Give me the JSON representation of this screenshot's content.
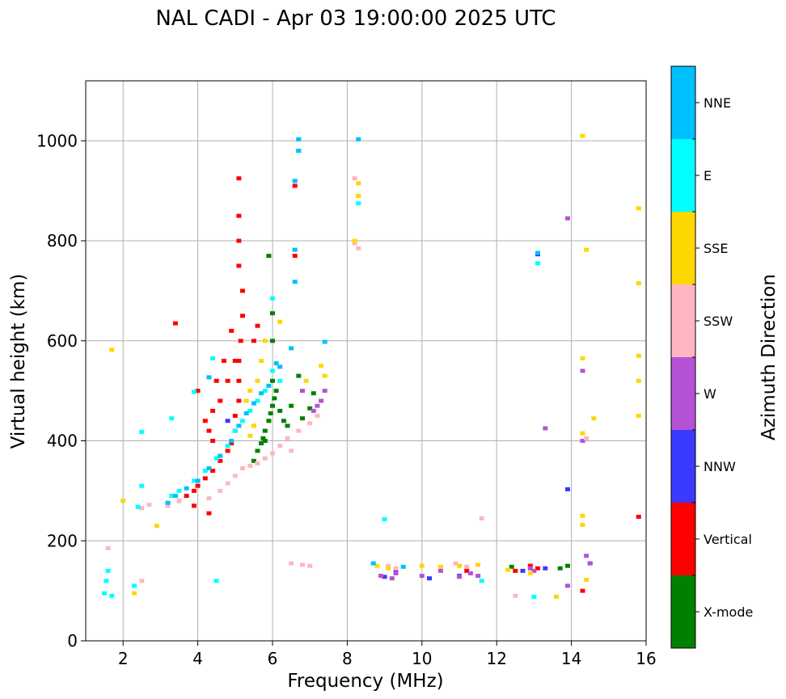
{
  "chart_data": {
    "type": "scatter",
    "title": "NAL CADI - Apr 03 19:00:00 2025 UTC",
    "xlabel": "Frequency (MHz)",
    "ylabel": "Virtual height (km)",
    "xlim": [
      1,
      16
    ],
    "ylim": [
      0,
      1120
    ],
    "xticks": [
      "2",
      "4",
      "6",
      "8",
      "10",
      "12",
      "14",
      "16"
    ],
    "yticks": [
      "0",
      "200",
      "400",
      "600",
      "800",
      "1000"
    ],
    "grid": true,
    "colorbar": {
      "label": "Azimuth Direction",
      "categories": [
        "X-mode",
        "Vertical",
        "NNW",
        "W",
        "SSW",
        "SSE",
        "E",
        "NNE"
      ],
      "colors": [
        "#008000",
        "#ff0000",
        "#3a3aff",
        "#b652d5",
        "#ffb6c1",
        "#ffd700",
        "#00ffff",
        "#00bfff"
      ]
    },
    "series": [
      {
        "name": "X-mode",
        "points": [
          [
            5.6,
            380
          ],
          [
            5.7,
            395
          ],
          [
            5.75,
            405
          ],
          [
            5.8,
            420
          ],
          [
            5.9,
            440
          ],
          [
            5.95,
            455
          ],
          [
            6.0,
            470
          ],
          [
            6.05,
            485
          ],
          [
            6.0,
            520
          ],
          [
            6.0,
            655
          ],
          [
            5.9,
            770
          ],
          [
            6.1,
            500
          ],
          [
            6.2,
            460
          ],
          [
            6.3,
            440
          ],
          [
            6.4,
            430
          ],
          [
            6.5,
            470
          ],
          [
            6.7,
            530
          ],
          [
            6.8,
            445
          ],
          [
            7.0,
            465
          ],
          [
            7.1,
            495
          ],
          [
            5.5,
            360
          ],
          [
            5.8,
            400
          ],
          [
            6.0,
            600
          ],
          [
            14.5,
            155
          ],
          [
            13.7,
            145
          ],
          [
            13.9,
            150
          ],
          [
            12.4,
            148
          ]
        ]
      },
      {
        "name": "Vertical",
        "points": [
          [
            3.5,
            280
          ],
          [
            3.7,
            290
          ],
          [
            3.9,
            300
          ],
          [
            4.0,
            310
          ],
          [
            4.2,
            325
          ],
          [
            4.4,
            340
          ],
          [
            4.6,
            360
          ],
          [
            4.8,
            380
          ],
          [
            4.9,
            395
          ],
          [
            5.0,
            420
          ],
          [
            5.0,
            450
          ],
          [
            5.1,
            480
          ],
          [
            5.1,
            520
          ],
          [
            5.1,
            560
          ],
          [
            5.15,
            600
          ],
          [
            5.2,
            650
          ],
          [
            5.2,
            700
          ],
          [
            5.1,
            750
          ],
          [
            5.1,
            800
          ],
          [
            5.1,
            850
          ],
          [
            5.1,
            925
          ],
          [
            4.9,
            620
          ],
          [
            4.7,
            560
          ],
          [
            4.5,
            520
          ],
          [
            4.2,
            440
          ],
          [
            4.3,
            420
          ],
          [
            3.4,
            635
          ],
          [
            4.0,
            500
          ],
          [
            4.4,
            460
          ],
          [
            4.8,
            520
          ],
          [
            5.0,
            560
          ],
          [
            5.5,
            600
          ],
          [
            5.6,
            630
          ],
          [
            6.6,
            910
          ],
          [
            6.6,
            770
          ],
          [
            12.9,
            150
          ],
          [
            12.5,
            140
          ],
          [
            13.1,
            145
          ],
          [
            15.8,
            248
          ],
          [
            14.3,
            100
          ],
          [
            11.2,
            140
          ],
          [
            4.6,
            480
          ],
          [
            4.4,
            400
          ],
          [
            3.9,
            270
          ],
          [
            4.3,
            255
          ]
        ]
      },
      {
        "name": "NNW",
        "points": [
          [
            13.9,
            303
          ],
          [
            13.3,
            145
          ],
          [
            12.7,
            140
          ],
          [
            11.0,
            130
          ],
          [
            10.2,
            125
          ],
          [
            9.3,
            140
          ],
          [
            9.0,
            128
          ],
          [
            4.8,
            440
          ],
          [
            13.1,
            773
          ]
        ]
      },
      {
        "name": "W",
        "points": [
          [
            8.9,
            130
          ],
          [
            9.2,
            125
          ],
          [
            9.3,
            135
          ],
          [
            10.0,
            130
          ],
          [
            10.5,
            140
          ],
          [
            11.0,
            128
          ],
          [
            11.3,
            135
          ],
          [
            11.5,
            130
          ],
          [
            12.9,
            145
          ],
          [
            13.0,
            140
          ],
          [
            13.9,
            845
          ],
          [
            14.3,
            540
          ],
          [
            14.3,
            400
          ],
          [
            13.9,
            110
          ],
          [
            13.3,
            425
          ],
          [
            7.4,
            500
          ],
          [
            7.3,
            480
          ],
          [
            7.2,
            470
          ],
          [
            7.1,
            460
          ],
          [
            14.5,
            155
          ],
          [
            14.4,
            170
          ],
          [
            6.8,
            500
          ]
        ]
      },
      {
        "name": "SSW",
        "points": [
          [
            4.3,
            285
          ],
          [
            4.6,
            300
          ],
          [
            4.8,
            315
          ],
          [
            5.0,
            330
          ],
          [
            5.2,
            345
          ],
          [
            5.4,
            350
          ],
          [
            5.6,
            355
          ],
          [
            5.8,
            365
          ],
          [
            6.0,
            375
          ],
          [
            6.2,
            390
          ],
          [
            6.4,
            405
          ],
          [
            6.5,
            380
          ],
          [
            6.7,
            420
          ],
          [
            7.0,
            435
          ],
          [
            7.2,
            450
          ],
          [
            8.2,
            925
          ],
          [
            8.2,
            795
          ],
          [
            8.3,
            785
          ],
          [
            9.1,
            150
          ],
          [
            9.3,
            145
          ],
          [
            10.9,
            155
          ],
          [
            11.2,
            148
          ],
          [
            11.6,
            245
          ],
          [
            2.5,
            120
          ],
          [
            1.6,
            185
          ],
          [
            12.5,
            90
          ],
          [
            14.4,
            405
          ],
          [
            6.5,
            155
          ],
          [
            6.8,
            152
          ],
          [
            7.0,
            150
          ],
          [
            2.5,
            265
          ],
          [
            2.7,
            272
          ],
          [
            3.2,
            270
          ],
          [
            3.5,
            280
          ]
        ]
      },
      {
        "name": "SSE",
        "points": [
          [
            8.3,
            915
          ],
          [
            8.3,
            890
          ],
          [
            8.2,
            800
          ],
          [
            14.3,
            1010
          ],
          [
            14.4,
            782
          ],
          [
            15.8,
            865
          ],
          [
            15.8,
            715
          ],
          [
            15.8,
            570
          ],
          [
            15.8,
            520
          ],
          [
            15.8,
            450
          ],
          [
            14.3,
            565
          ],
          [
            14.6,
            445
          ],
          [
            14.3,
            415
          ],
          [
            14.3,
            250
          ],
          [
            14.3,
            232
          ],
          [
            14.4,
            122
          ],
          [
            13.6,
            88
          ],
          [
            12.9,
            135
          ],
          [
            12.3,
            142
          ],
          [
            11.5,
            152
          ],
          [
            11.0,
            150
          ],
          [
            10.5,
            148
          ],
          [
            10.0,
            150
          ],
          [
            9.1,
            145
          ],
          [
            8.8,
            150
          ],
          [
            6.2,
            638
          ],
          [
            5.8,
            600
          ],
          [
            5.7,
            560
          ],
          [
            5.6,
            520
          ],
          [
            5.4,
            500
          ],
          [
            5.3,
            480
          ],
          [
            6.9,
            520
          ],
          [
            7.3,
            550
          ],
          [
            7.4,
            530
          ],
          [
            1.7,
            582
          ],
          [
            2.0,
            280
          ],
          [
            2.3,
            95
          ],
          [
            2.9,
            230
          ],
          [
            5.5,
            430
          ],
          [
            5.4,
            410
          ]
        ]
      },
      {
        "name": "E",
        "points": [
          [
            1.5,
            95
          ],
          [
            1.6,
            140
          ],
          [
            1.55,
            120
          ],
          [
            1.7,
            90
          ],
          [
            2.3,
            110
          ],
          [
            2.5,
            310
          ],
          [
            2.5,
            418
          ],
          [
            2.4,
            268
          ],
          [
            3.3,
            290
          ],
          [
            3.5,
            300
          ],
          [
            3.9,
            320
          ],
          [
            4.2,
            340
          ],
          [
            4.5,
            365
          ],
          [
            4.8,
            390
          ],
          [
            5.0,
            420
          ],
          [
            5.2,
            440
          ],
          [
            5.4,
            460
          ],
          [
            5.6,
            480
          ],
          [
            5.8,
            500
          ],
          [
            6.0,
            540
          ],
          [
            6.2,
            520
          ],
          [
            6.0,
            685
          ],
          [
            6.7,
            1003
          ],
          [
            6.7,
            980
          ],
          [
            8.3,
            875
          ],
          [
            13.1,
            755
          ],
          [
            13.0,
            88
          ],
          [
            9.0,
            243
          ],
          [
            11.6,
            120
          ],
          [
            4.5,
            120
          ],
          [
            3.9,
            498
          ],
          [
            4.4,
            565
          ],
          [
            3.3,
            445
          ]
        ]
      },
      {
        "name": "NNE",
        "points": [
          [
            6.7,
            1003
          ],
          [
            6.7,
            980
          ],
          [
            6.6,
            920
          ],
          [
            6.6,
            718
          ],
          [
            6.6,
            782
          ],
          [
            8.3,
            1003
          ],
          [
            3.4,
            290
          ],
          [
            3.7,
            305
          ],
          [
            4.0,
            320
          ],
          [
            4.3,
            345
          ],
          [
            4.6,
            370
          ],
          [
            4.9,
            400
          ],
          [
            5.1,
            430
          ],
          [
            5.3,
            455
          ],
          [
            5.5,
            475
          ],
          [
            5.7,
            495
          ],
          [
            5.9,
            510
          ],
          [
            6.2,
            548
          ],
          [
            6.5,
            585
          ],
          [
            7.4,
            598
          ],
          [
            4.3,
            527
          ],
          [
            8.7,
            155
          ],
          [
            9.5,
            148
          ],
          [
            13.1,
            776
          ],
          [
            3.2,
            276
          ],
          [
            6.1,
            555
          ]
        ]
      }
    ]
  }
}
